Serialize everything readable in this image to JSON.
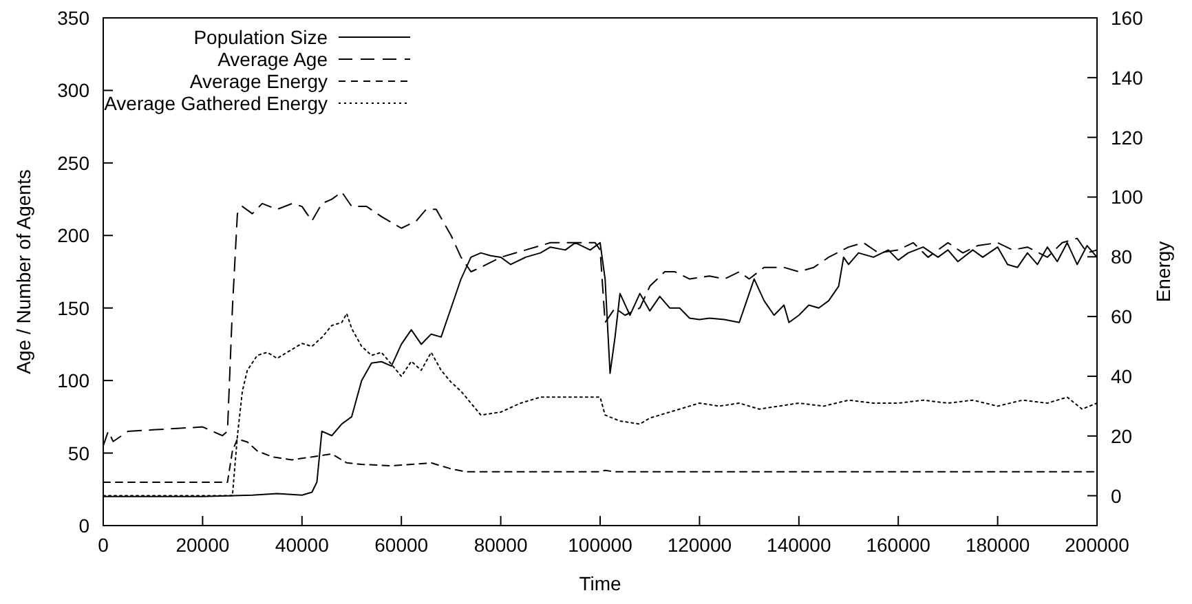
{
  "chart_data": {
    "type": "line",
    "xlabel": "Time",
    "ylabel": "Age / Number of Agents",
    "y2label": "Energy",
    "xlim": [
      0,
      200000
    ],
    "xticks": [
      0,
      20000,
      40000,
      60000,
      80000,
      100000,
      120000,
      140000,
      160000,
      180000,
      200000
    ],
    "ylim": [
      0,
      350
    ],
    "yticks": [
      0,
      50,
      100,
      150,
      200,
      250,
      300,
      350
    ],
    "y2lim": [
      -10,
      160
    ],
    "y2ticks": [
      0,
      20,
      40,
      60,
      80,
      100,
      120,
      140,
      160
    ],
    "grid": false,
    "legend": "top left",
    "series": [
      {
        "name": "Population Size",
        "color": "#000000",
        "line_style": "solid",
        "x": [
          0,
          10000,
          20000,
          30000,
          35000,
          40000,
          42000,
          43000,
          44000,
          46000,
          48000,
          50000,
          52000,
          54000,
          56000,
          58000,
          60000,
          62000,
          64000,
          66000,
          68000,
          70000,
          72000,
          74000,
          76000,
          78000,
          80000,
          82000,
          85000,
          88000,
          90000,
          93000,
          95000,
          98000,
          100000,
          101000,
          102000,
          103000,
          104000,
          106000,
          108000,
          110000,
          112000,
          114000,
          116000,
          118000,
          120000,
          122000,
          125000,
          128000,
          130000,
          131000,
          133000,
          135000,
          137000,
          138000,
          140000,
          142000,
          144000,
          146000,
          148000,
          149000,
          150000,
          152000,
          155000,
          158000,
          160000,
          162000,
          165000,
          168000,
          170000,
          172000,
          175000,
          177000,
          180000,
          182000,
          184000,
          186000,
          188000,
          190000,
          192000,
          194000,
          196000,
          198000,
          200000
        ],
        "values": [
          20,
          20,
          20,
          21,
          22,
          21,
          23,
          30,
          65,
          62,
          70,
          75,
          100,
          112,
          113,
          110,
          125,
          135,
          125,
          132,
          130,
          150,
          170,
          185,
          188,
          186,
          185,
          180,
          185,
          188,
          192,
          190,
          195,
          190,
          195,
          170,
          105,
          130,
          160,
          145,
          160,
          148,
          158,
          150,
          150,
          143,
          142,
          143,
          142,
          140,
          160,
          170,
          155,
          145,
          152,
          140,
          145,
          152,
          150,
          155,
          165,
          185,
          180,
          188,
          185,
          190,
          183,
          188,
          192,
          185,
          190,
          182,
          190,
          185,
          192,
          180,
          178,
          188,
          180,
          192,
          182,
          195,
          180,
          193,
          185
        ]
      },
      {
        "name": "Average Age",
        "color": "#000000",
        "line_style": "dashed",
        "x": [
          0,
          1000,
          2000,
          5000,
          10000,
          15000,
          20000,
          24000,
          25000,
          26000,
          27000,
          28000,
          30000,
          32000,
          35000,
          38000,
          40000,
          42000,
          44000,
          46000,
          48000,
          50000,
          53000,
          56000,
          60000,
          63000,
          65000,
          67000,
          70000,
          72000,
          74000,
          76000,
          80000,
          85000,
          90000,
          95000,
          99000,
          100000,
          101000,
          103000,
          105000,
          108000,
          110000,
          113000,
          115000,
          118000,
          122000,
          125000,
          128000,
          130000,
          133000,
          137000,
          140000,
          143000,
          146000,
          150000,
          153000,
          156000,
          160000,
          163000,
          166000,
          170000,
          173000,
          176000,
          180000,
          183000,
          186000,
          190000,
          193000,
          196000,
          198000,
          200000
        ],
        "values": [
          55,
          65,
          58,
          65,
          66,
          67,
          68,
          62,
          65,
          150,
          215,
          220,
          215,
          222,
          218,
          222,
          220,
          210,
          222,
          225,
          230,
          220,
          220,
          213,
          205,
          210,
          218,
          218,
          200,
          185,
          175,
          178,
          185,
          190,
          195,
          195,
          195,
          190,
          140,
          150,
          145,
          150,
          165,
          175,
          175,
          170,
          172,
          170,
          175,
          170,
          178,
          178,
          175,
          178,
          185,
          192,
          195,
          188,
          190,
          195,
          185,
          195,
          188,
          193,
          195,
          190,
          192,
          185,
          195,
          198,
          188,
          190
        ]
      },
      {
        "name": "Average Energy",
        "color": "#000000",
        "line_style": "dashed",
        "axis": "y2",
        "x": [
          0,
          25000,
          26000,
          27000,
          29000,
          31000,
          34000,
          38000,
          42000,
          46000,
          49000,
          52000,
          58000,
          62000,
          66000,
          70000,
          73000,
          100000,
          101000,
          103000,
          200000
        ],
        "values": [
          4.5,
          4.5,
          15,
          19,
          18,
          15,
          13,
          12,
          13,
          14,
          11,
          10.5,
          10,
          10.5,
          11,
          9,
          8,
          8,
          8.5,
          8,
          8
        ]
      },
      {
        "name": "Average Gathered Energy",
        "color": "#000000",
        "line_style": "dotted",
        "axis": "y2",
        "x": [
          0,
          26000,
          27000,
          28000,
          29000,
          31000,
          33000,
          35000,
          38000,
          40000,
          42000,
          44000,
          46000,
          48000,
          49000,
          50000,
          52000,
          54000,
          56000,
          58000,
          60000,
          62000,
          64000,
          66000,
          68000,
          70000,
          72000,
          74000,
          76000,
          80000,
          84000,
          88000,
          92000,
          96000,
          100000,
          101000,
          104000,
          108000,
          110000,
          114000,
          118000,
          120000,
          124000,
          128000,
          132000,
          136000,
          140000,
          145000,
          150000,
          155000,
          160000,
          165000,
          170000,
          175000,
          180000,
          185000,
          190000,
          194000,
          197000,
          200000
        ],
        "values": [
          0,
          0,
          20,
          35,
          42,
          47,
          48,
          46,
          49,
          51,
          50,
          53,
          57,
          58,
          61,
          56,
          50,
          47,
          48,
          44,
          40,
          45,
          42,
          48,
          42,
          38,
          35,
          31,
          27,
          28,
          31,
          33,
          33,
          33,
          33,
          27,
          25,
          24,
          26,
          28,
          30,
          31,
          30,
          31,
          29,
          30,
          31,
          30,
          32,
          31,
          31,
          32,
          31,
          32,
          30,
          32,
          31,
          33,
          29,
          31
        ]
      }
    ]
  }
}
